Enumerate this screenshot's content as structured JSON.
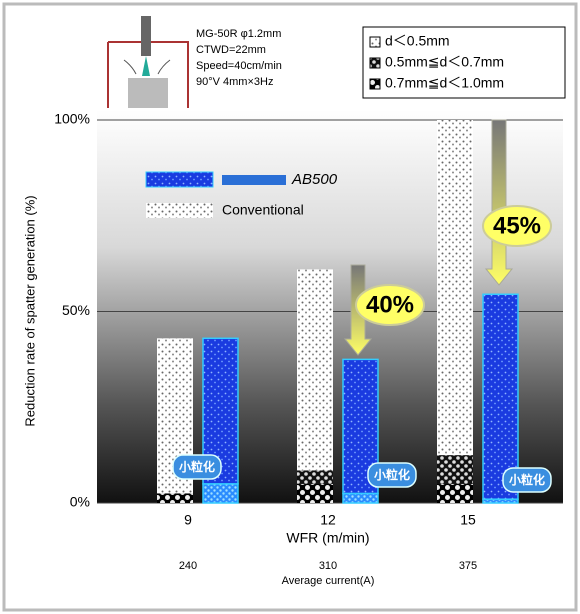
{
  "chart_data": {
    "type": "bar",
    "y_label": "Reduction rate of spatter generation (%)",
    "x_label": "WFR (m/min)",
    "x2_label": "Average current(A)",
    "categories": [
      "9",
      "12",
      "15"
    ],
    "x2_categories": [
      "240",
      "310",
      "375"
    ],
    "ylim": [
      0,
      100
    ],
    "yticks": [
      {
        "value": 0,
        "label": "0%"
      },
      {
        "value": 50,
        "label": "50%"
      },
      {
        "value": 100,
        "label": "100%"
      }
    ],
    "grid": true,
    "size_classes": [
      "d＜0.5mm",
      "0.5mm≦d＜0.7mm",
      "0.7mm≦d＜1.0mm"
    ],
    "groups": [
      {
        "name": "Conventional",
        "color": "#ffffff",
        "values": [
          [
            40.5,
            52.5,
            87.5
          ],
          [
            0,
            3.5,
            7.5
          ],
          [
            2.5,
            5,
            5
          ]
        ]
      },
      {
        "name": "AB500",
        "color": "#1a3be0",
        "values": [
          [
            38,
            35,
            53.5
          ],
          [
            5,
            2.5,
            1
          ],
          [
            0,
            0,
            0
          ]
        ]
      }
    ],
    "conditions": [
      "MG-50R φ1.2mm",
      "CTWD=22mm",
      "Speed=40cm/min",
      "90°V 4mm×3Hz"
    ],
    "reductions": [
      "40%",
      "45%"
    ],
    "refinements": [
      "小粒化",
      "小粒化",
      "小粒化"
    ]
  }
}
